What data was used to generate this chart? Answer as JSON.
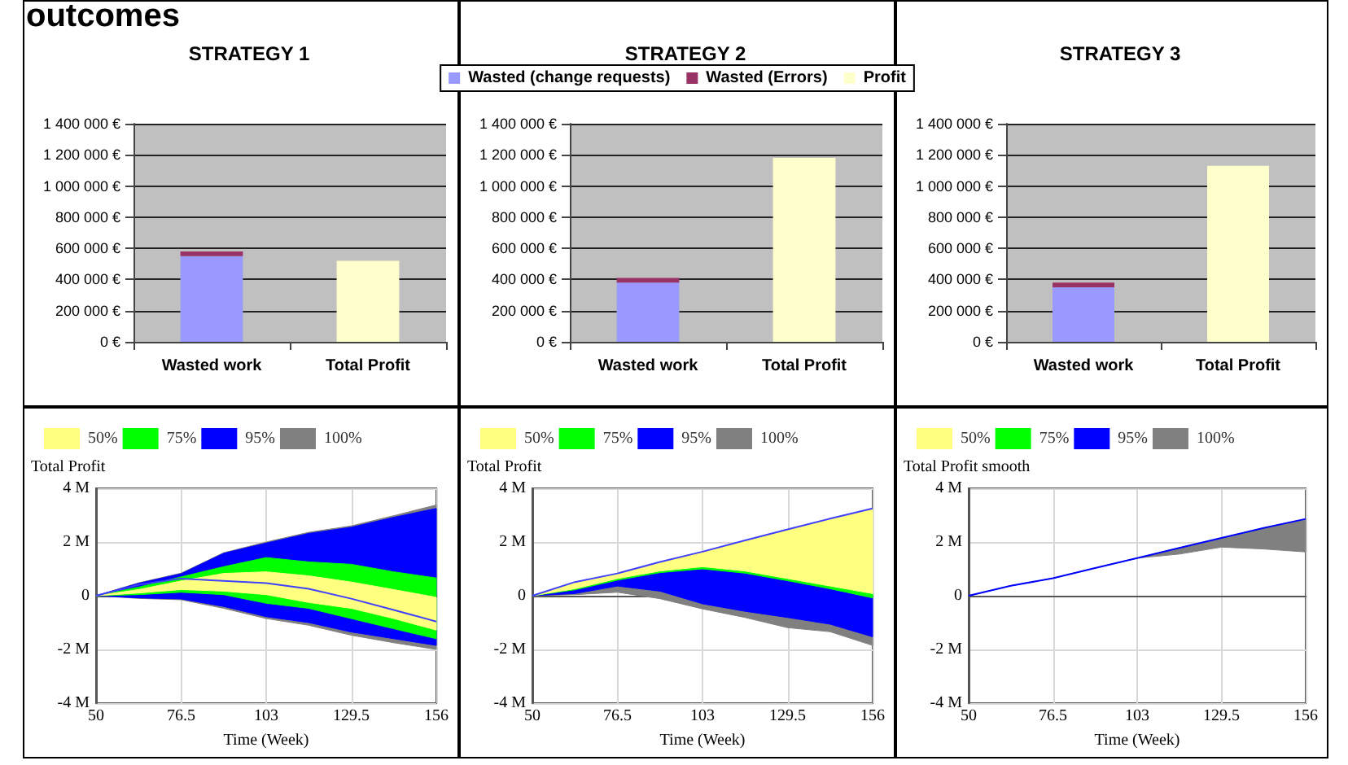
{
  "chart_data": [
    {
      "type": "bar",
      "title": "STRATEGY 1",
      "annotations": [
        "outcomes"
      ],
      "stacked": true,
      "grid": "y",
      "legend": false,
      "categories": [
        "Wasted work",
        "Total Profit"
      ],
      "series": [
        {
          "color": "#9999ff",
          "values": [
            550000,
            null
          ]
        },
        {
          "color": "#993366",
          "values": [
            30000,
            null
          ]
        },
        {
          "color": "#ffffcc",
          "values": [
            null,
            520000
          ]
        }
      ],
      "ylim": [
        0,
        1400000
      ],
      "yticks": [
        {
          "value": 0,
          "label": "0 €"
        },
        {
          "value": 200000,
          "label": "200 000 €"
        },
        {
          "value": 400000,
          "label": "400 000 €"
        },
        {
          "value": 600000,
          "label": "600 000 €"
        },
        {
          "value": 800000,
          "label": "800 000 €"
        },
        {
          "value": 1000000,
          "label": "1 000 000 €"
        },
        {
          "value": 1200000,
          "label": "1 200 000 €"
        },
        {
          "value": 1400000,
          "label": "1 400 000 €"
        }
      ]
    },
    {
      "type": "bar",
      "title": "STRATEGY 2",
      "stacked": true,
      "grid": "y",
      "legend": "top",
      "categories": [
        "Wasted work",
        "Total Profit"
      ],
      "series": [
        {
          "name": "Wasted (change requests)",
          "color": "#9999ff",
          "values": [
            380000,
            null
          ]
        },
        {
          "name": "Wasted (Errors)",
          "color": "#993366",
          "values": [
            30000,
            null
          ]
        },
        {
          "name": "Profit",
          "color": "#ffffcc",
          "values": [
            null,
            1180000
          ]
        }
      ],
      "ylim": [
        0,
        1400000
      ],
      "yticks": [
        {
          "value": 0,
          "label": "0 €"
        },
        {
          "value": 200000,
          "label": "200 000 €"
        },
        {
          "value": 400000,
          "label": "400 000 €"
        },
        {
          "value": 600000,
          "label": "600 000 €"
        },
        {
          "value": 800000,
          "label": "800 000 €"
        },
        {
          "value": 1000000,
          "label": "1 000 000 €"
        },
        {
          "value": 1200000,
          "label": "1 200 000 €"
        },
        {
          "value": 1400000,
          "label": "1 400 000 €"
        }
      ]
    },
    {
      "type": "bar",
      "title": "STRATEGY 3",
      "stacked": true,
      "grid": "y",
      "legend": false,
      "categories": [
        "Wasted work",
        "Total Profit"
      ],
      "series": [
        {
          "color": "#9999ff",
          "values": [
            350000,
            null
          ]
        },
        {
          "color": "#993366",
          "values": [
            30000,
            null
          ]
        },
        {
          "color": "#ffffcc",
          "values": [
            null,
            1130000
          ]
        }
      ],
      "ylim": [
        0,
        1400000
      ],
      "yticks": [
        {
          "value": 0,
          "label": "0 €"
        },
        {
          "value": 200000,
          "label": "200 000 €"
        },
        {
          "value": 400000,
          "label": "400 000 €"
        },
        {
          "value": 600000,
          "label": "600 000 €"
        },
        {
          "value": 800000,
          "label": "800 000 €"
        },
        {
          "value": 1000000,
          "label": "1 000 000 €"
        },
        {
          "value": 1200000,
          "label": "1 200 000 €"
        },
        {
          "value": 1400000,
          "label": "1 400 000 €"
        }
      ]
    },
    {
      "type": "area",
      "ylabel": "Total Profit",
      "xlabel": "Time (Week)",
      "grid": true,
      "legend": "top left",
      "x": [
        50,
        63.25,
        76.5,
        89.75,
        103,
        116.25,
        129.5,
        142.75,
        156
      ],
      "series": [
        {
          "name": "50%",
          "type": "area",
          "color": "#ffff80",
          "values": [
            null,
            null,
            null,
            null,
            null,
            null,
            null,
            null,
            null
          ],
          "upper": [
            0,
            0.23,
            0.55,
            0.83,
            0.89,
            0.74,
            0.51,
            0.23,
            -0.06
          ],
          "lower": [
            0,
            0.1,
            0.23,
            0.17,
            0.04,
            -0.25,
            -0.47,
            -0.85,
            -1.28
          ]
        },
        {
          "name": "75%",
          "type": "area",
          "color": "#00ff00",
          "values": [
            null,
            null,
            null,
            null,
            null,
            null,
            null,
            null,
            null
          ],
          "upper": [
            0,
            0.32,
            0.7,
            1.08,
            1.42,
            1.26,
            1.17,
            0.89,
            0.66
          ],
          "lower": [
            0,
            0.04,
            0.13,
            0.04,
            -0.28,
            -0.47,
            -0.85,
            -1.23,
            -1.6
          ]
        },
        {
          "name": "95%",
          "type": "area",
          "color": "#0000ff",
          "values": [
            null,
            null,
            null,
            null,
            null,
            null,
            null,
            null,
            null
          ],
          "upper": [
            0,
            0.46,
            0.82,
            1.58,
            1.96,
            2.32,
            2.55,
            2.92,
            3.25
          ],
          "lower": [
            0,
            -0.08,
            -0.12,
            -0.4,
            -0.78,
            -1.0,
            -1.35,
            -1.6,
            -1.85
          ]
        },
        {
          "name": "100%",
          "type": "area",
          "color": "#808080",
          "values": [
            null,
            null,
            null,
            null,
            null,
            null,
            null,
            null,
            null
          ],
          "upper": [
            0,
            0.48,
            0.84,
            1.6,
            2.0,
            2.36,
            2.6,
            2.98,
            3.38
          ],
          "lower": [
            0,
            -0.1,
            -0.15,
            -0.47,
            -0.85,
            -1.1,
            -1.47,
            -1.75,
            -2.0
          ]
        },
        {
          "type": "line",
          "color": "#4040ff",
          "values": [
            0,
            0.41,
            0.64,
            0.55,
            0.47,
            0.26,
            -0.11,
            -0.53,
            -0.96
          ]
        }
      ],
      "xlim": [
        50,
        156
      ],
      "xticks": [
        50,
        76.5,
        103,
        129.5,
        156
      ],
      "ylim": [
        -4,
        4
      ],
      "yticks": [
        {
          "value": -4,
          "label": "-4 M"
        },
        {
          "value": -2,
          "label": "-2 M"
        },
        {
          "value": 0,
          "label": "0"
        },
        {
          "value": 2,
          "label": "2 M"
        },
        {
          "value": 4,
          "label": "4 M"
        }
      ]
    },
    {
      "type": "area",
      "ylabel": "Total Profit",
      "xlabel": "Time (Week)",
      "grid": true,
      "legend": "top left",
      "x": [
        50,
        63.25,
        76.5,
        89.75,
        103,
        116.25,
        129.5,
        142.75,
        156
      ],
      "series": [
        {
          "name": "50%",
          "type": "area",
          "color": "#ffff80",
          "values": [
            null,
            null,
            null,
            null,
            null,
            null,
            null,
            null,
            null
          ],
          "upper": [
            0,
            0.51,
            0.83,
            1.26,
            1.64,
            2.06,
            2.47,
            2.87,
            3.25
          ],
          "lower": [
            0,
            0.26,
            0.64,
            0.92,
            1.08,
            0.92,
            0.64,
            0.36,
            0.08
          ]
        },
        {
          "name": "75%",
          "type": "area",
          "color": "#00ff00",
          "values": [
            null,
            null,
            null,
            null,
            null,
            null,
            null,
            null,
            null
          ],
          "upper": [
            0,
            0.26,
            0.64,
            0.92,
            1.08,
            0.92,
            0.64,
            0.36,
            0.08
          ],
          "lower": [
            0,
            0.22,
            0.58,
            0.86,
            1.0,
            0.84,
            0.56,
            0.26,
            -0.08
          ]
        },
        {
          "name": "95%",
          "type": "area",
          "color": "#0000ff",
          "values": [
            null,
            null,
            null,
            null,
            null,
            null,
            null,
            null,
            null
          ],
          "upper": [
            0,
            0.22,
            0.58,
            0.86,
            1.0,
            0.84,
            0.56,
            0.26,
            -0.08
          ],
          "lower": [
            0,
            0.08,
            0.36,
            0.17,
            -0.3,
            -0.58,
            -0.81,
            -1.06,
            -1.53
          ]
        },
        {
          "name": "100%",
          "type": "area",
          "color": "#808080",
          "values": [
            null,
            null,
            null,
            null,
            null,
            null,
            null,
            null,
            null
          ],
          "upper": [
            0,
            0.08,
            0.36,
            0.17,
            -0.3,
            -0.58,
            -0.81,
            -1.06,
            -1.53
          ],
          "lower": [
            0,
            0.04,
            0.13,
            -0.11,
            -0.49,
            -0.81,
            -1.19,
            -1.34,
            -1.85
          ]
        },
        {
          "type": "line",
          "color": "#4040ff",
          "values": [
            0,
            0.51,
            0.83,
            1.26,
            1.64,
            2.06,
            2.47,
            2.87,
            3.25
          ]
        }
      ],
      "xlim": [
        50,
        156
      ],
      "xticks": [
        50,
        76.5,
        103,
        129.5,
        156
      ],
      "ylim": [
        -4,
        4
      ],
      "yticks": [
        {
          "value": -4,
          "label": "-4 M"
        },
        {
          "value": -2,
          "label": "-2 M"
        },
        {
          "value": 0,
          "label": "0"
        },
        {
          "value": 2,
          "label": "2 M"
        },
        {
          "value": 4,
          "label": "4 M"
        }
      ]
    },
    {
      "type": "area",
      "ylabel": "Total Profit smooth",
      "xlabel": "Time (Week)",
      "grid": true,
      "legend": "top left",
      "x": [
        50,
        63.25,
        76.5,
        89.75,
        103,
        116.25,
        129.5,
        142.75,
        156
      ],
      "series": [
        {
          "name": "50%",
          "type": "area",
          "color": "#ffff80",
          "values": [
            null,
            null,
            null,
            null,
            null,
            null,
            null,
            null,
            null
          ]
        },
        {
          "name": "75%",
          "type": "area",
          "color": "#00ff00",
          "values": [
            null,
            null,
            null,
            null,
            null,
            null,
            null,
            null,
            null
          ]
        },
        {
          "name": "95%",
          "type": "area",
          "color": "#0000ff",
          "values": [
            null,
            null,
            null,
            null,
            null,
            null,
            null,
            null,
            null
          ]
        },
        {
          "name": "100%",
          "type": "area",
          "color": "#808080",
          "values": [
            null,
            null,
            null,
            null,
            null,
            null,
            null,
            null,
            null
          ],
          "upper": [
            0,
            0.37,
            0.65,
            1.03,
            1.4,
            1.78,
            2.15,
            2.52,
            2.86
          ],
          "lower": [
            0,
            0.37,
            0.65,
            1.03,
            1.4,
            1.55,
            1.81,
            1.74,
            1.63
          ]
        },
        {
          "type": "line",
          "color": "#0000ff",
          "values": [
            0,
            0.37,
            0.65,
            1.03,
            1.4,
            1.78,
            2.15,
            2.52,
            2.86
          ]
        }
      ],
      "xlim": [
        50,
        156
      ],
      "xticks": [
        50,
        76.5,
        103,
        129.5,
        156
      ],
      "ylim": [
        -4,
        4
      ],
      "yticks": [
        {
          "value": -4,
          "label": "-4 M"
        },
        {
          "value": -2,
          "label": "-2 M"
        },
        {
          "value": 0,
          "label": "0"
        },
        {
          "value": 2,
          "label": "2 M"
        },
        {
          "value": 4,
          "label": "4 M"
        }
      ]
    }
  ]
}
